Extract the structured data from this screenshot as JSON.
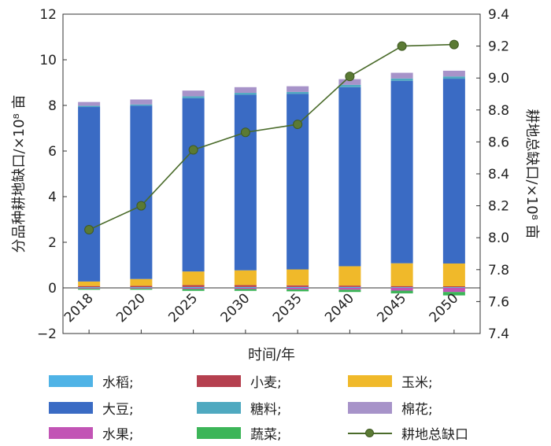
{
  "chart_data": {
    "type": "bar",
    "stacked": true,
    "categories": [
      "2018",
      "2020",
      "2025",
      "2030",
      "2035",
      "2040",
      "2045",
      "2050"
    ],
    "xlabel": "时间/年",
    "ylabel_left": "分品种耕地缺口/×10⁸ 亩",
    "ylabel_right": "耕地总缺口/×10⁸ 亩",
    "ylim_left": [
      -2,
      12
    ],
    "ylim_right": [
      7.4,
      9.4
    ],
    "yticks_left": [
      "−2",
      "0",
      "2",
      "4",
      "6",
      "8",
      "10",
      "12"
    ],
    "yticks_right": [
      "7.4",
      "7.6",
      "7.8",
      "8.0",
      "8.2",
      "8.4",
      "8.6",
      "8.8",
      "9.0",
      "9.2",
      "9.4"
    ],
    "series": [
      {
        "name": "水稻",
        "legend_label": "水稻;",
        "color": "#4fb3e6",
        "values": [
          0.03,
          0.03,
          0.04,
          0.04,
          0.04,
          0.04,
          0.03,
          0.03
        ]
      },
      {
        "name": "小麦",
        "legend_label": "小麦;",
        "color": "#b5404f",
        "values": [
          0.05,
          0.06,
          0.08,
          0.08,
          0.07,
          0.06,
          0.05,
          0.04
        ]
      },
      {
        "name": "玉米",
        "legend_label": "玉米;",
        "color": "#f0b92a",
        "values": [
          0.2,
          0.3,
          0.6,
          0.65,
          0.7,
          0.85,
          1.0,
          1.0
        ]
      },
      {
        "name": "大豆",
        "legend_label": "大豆;",
        "color": "#3a6bc4",
        "values": [
          7.65,
          7.6,
          7.6,
          7.7,
          7.7,
          7.85,
          8.0,
          8.1
        ]
      },
      {
        "name": "糖料",
        "legend_label": "糖料;",
        "color": "#4fa9c0",
        "values": [
          0.05,
          0.05,
          0.08,
          0.08,
          0.08,
          0.1,
          0.1,
          0.1
        ]
      },
      {
        "name": "棉花",
        "legend_label": "棉花;",
        "color": "#a793c9",
        "values": [
          0.17,
          0.22,
          0.25,
          0.25,
          0.25,
          0.25,
          0.25,
          0.25
        ]
      },
      {
        "name": "水果",
        "legend_label": "水果;",
        "color": "#c254b5",
        "values": [
          -0.03,
          -0.03,
          -0.05,
          -0.05,
          -0.07,
          -0.08,
          -0.12,
          -0.18
        ]
      },
      {
        "name": "蔬菜",
        "legend_label": "蔬菜;",
        "color": "#3cb558",
        "values": [
          -0.05,
          -0.05,
          -0.08,
          -0.08,
          -0.08,
          -0.1,
          -0.12,
          -0.15
        ]
      }
    ],
    "line": {
      "name": "耕地总缺口",
      "legend_label": "耕地总缺口",
      "color": "#4a6b2a",
      "axis": "right",
      "values": [
        8.05,
        8.2,
        8.55,
        8.66,
        8.71,
        9.01,
        9.2,
        9.21
      ]
    }
  }
}
